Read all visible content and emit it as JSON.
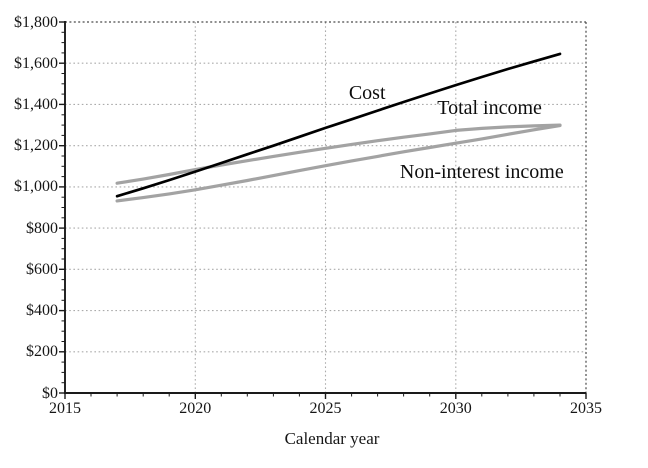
{
  "chart_data": {
    "type": "line",
    "title": "",
    "xlabel": "Calendar year",
    "ylabel": "",
    "xlim": [
      2015,
      2035
    ],
    "ylim": [
      0,
      1800
    ],
    "grid": "dotted gridlines at major ticks, dotted top and right frame",
    "legend_position": "none (direct in-plot labels)",
    "x_major_ticks": [
      2015,
      2020,
      2025,
      2030,
      2035
    ],
    "x_tick_labels": [
      "2015",
      "2020",
      "2025",
      "2030",
      "2035"
    ],
    "x_minor_tick_interval": 1,
    "y_major_ticks": [
      0,
      200,
      400,
      600,
      800,
      1000,
      1200,
      1400,
      1600,
      1800
    ],
    "y_tick_labels": [
      "$0",
      "$200",
      "$400",
      "$600",
      "$800",
      "$1,000",
      "$1,200",
      "$1,400",
      "$1,600",
      "$1,800"
    ],
    "y_minor_tick_interval": 50,
    "x": [
      2017,
      2018,
      2019,
      2020,
      2021,
      2022,
      2023,
      2024,
      2025,
      2026,
      2027,
      2028,
      2029,
      2030,
      2031,
      2032,
      2033,
      2034
    ],
    "series": [
      {
        "name": "Cost",
        "color": "#000000",
        "width": 2.7,
        "values": [
          955,
          993,
          1033,
          1074,
          1116,
          1158,
          1200,
          1243,
          1286,
          1328,
          1370,
          1412,
          1453,
          1494,
          1533,
          1572,
          1609,
          1645
        ]
      },
      {
        "name": "Total income",
        "color": "#a3a3a3",
        "width": 3.2,
        "values": [
          1018,
          1038,
          1060,
          1084,
          1106,
          1127,
          1148,
          1168,
          1187,
          1206,
          1224,
          1241,
          1257,
          1274,
          1284,
          1291,
          1296,
          1300
        ]
      },
      {
        "name": "Non-interest income",
        "color": "#a3a3a3",
        "width": 3.2,
        "values": [
          932,
          948,
          966,
          986,
          1008,
          1031,
          1055,
          1079,
          1103,
          1126,
          1148,
          1170,
          1191,
          1212,
          1233,
          1255,
          1277,
          1298
        ]
      }
    ],
    "annotations": [
      {
        "text": "Cost",
        "x": 2026.6,
        "y": 1456
      },
      {
        "text": "Total income",
        "x": 2031.3,
        "y": 1383
      },
      {
        "text": "Non-interest income",
        "x": 2031.0,
        "y": 1072
      }
    ],
    "colors": {
      "axis": "#1a1a1a",
      "grid": "#ababab",
      "frame_dotted": "#4a4a4a",
      "text": "#161616"
    }
  }
}
